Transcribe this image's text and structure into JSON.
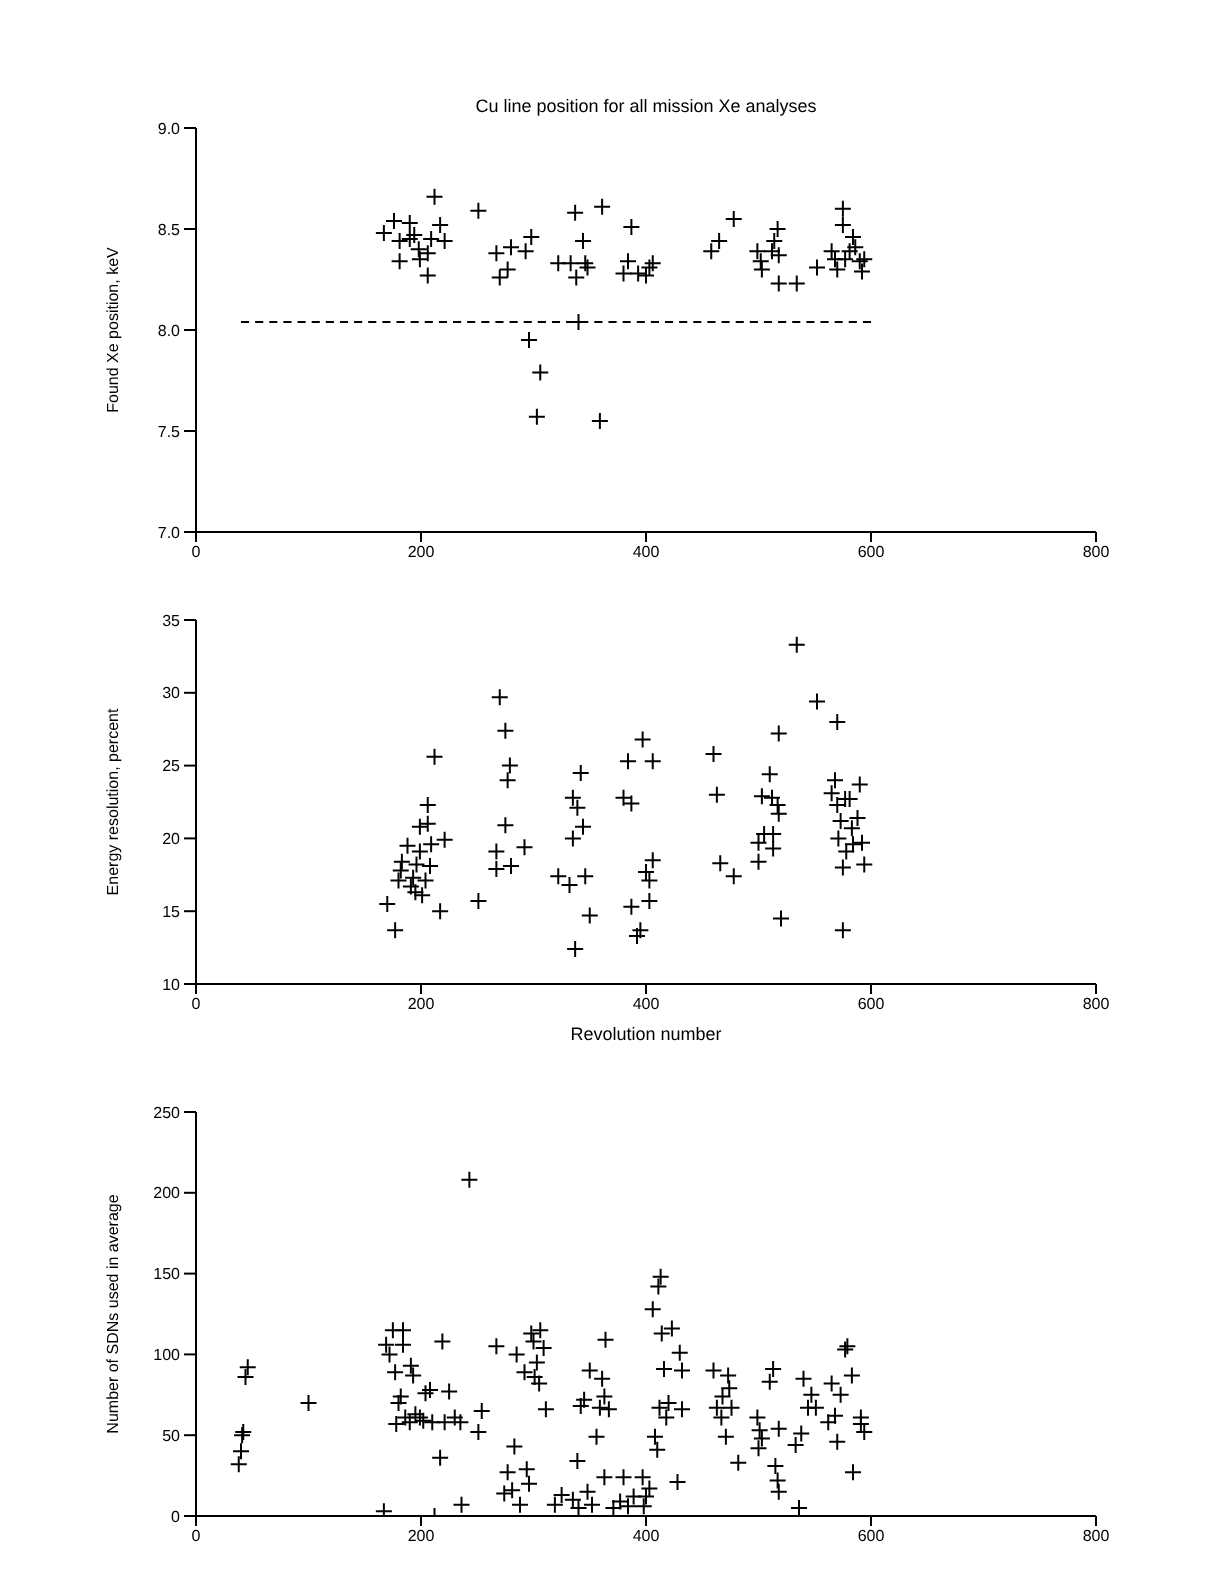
{
  "chart_data": [
    {
      "type": "scatter",
      "title": "Cu line position for all mission Xe analyses",
      "ylabel": "Found Xe position, keV",
      "xlim": [
        0,
        800
      ],
      "xticks": [
        0,
        200,
        400,
        600,
        800
      ],
      "ylim": [
        7.0,
        9.0
      ],
      "yticks": [
        {
          "value": 7.0,
          "label": "7.0"
        },
        {
          "value": 7.5,
          "label": "7.5"
        },
        {
          "value": 8.0,
          "label": "8.0"
        },
        {
          "value": 8.5,
          "label": "8.5"
        },
        {
          "value": 9.0,
          "label": "9.0"
        }
      ],
      "marker": "cross",
      "grid": false,
      "legend": false,
      "series": [
        {
          "type": "scatter",
          "color": "#000000",
          "x": [
            167,
            176,
            181,
            190,
            194,
            190,
            181,
            198,
            199,
            206,
            212,
            217,
            221,
            206,
            209,
            251,
            267,
            270,
            277,
            280,
            293,
            298,
            296,
            306,
            303,
            322,
            333,
            337,
            338,
            344,
            346,
            348,
            340,
            361,
            359,
            387,
            384,
            380,
            393,
            400,
            403,
            406,
            458,
            465,
            478,
            499,
            502,
            503,
            512,
            514,
            517,
            518,
            518,
            534,
            552,
            565,
            568,
            570,
            575,
            575,
            577,
            581,
            584,
            586,
            590,
            592,
            594
          ],
          "values": [
            8.48,
            8.54,
            8.44,
            8.53,
            8.47,
            8.45,
            8.34,
            8.4,
            8.35,
            8.38,
            8.66,
            8.52,
            8.44,
            8.27,
            8.45,
            8.59,
            8.38,
            8.26,
            8.3,
            8.41,
            8.39,
            8.46,
            7.95,
            7.79,
            7.57,
            8.33,
            8.33,
            8.58,
            8.26,
            8.44,
            8.33,
            8.31,
            8.04,
            8.61,
            7.55,
            8.51,
            8.34,
            8.28,
            8.28,
            8.27,
            8.31,
            8.33,
            8.39,
            8.44,
            8.55,
            8.39,
            8.34,
            8.3,
            8.39,
            8.44,
            8.5,
            8.37,
            8.23,
            8.23,
            8.31,
            8.39,
            8.35,
            8.3,
            8.6,
            8.52,
            8.35,
            8.39,
            8.46,
            8.41,
            8.34,
            8.29,
            8.35
          ]
        },
        {
          "type": "line",
          "color": "#000000",
          "line_style": "dashed",
          "marker": "none",
          "x": [
            40,
            600
          ],
          "values": [
            8.04,
            8.04
          ]
        }
      ]
    },
    {
      "type": "scatter",
      "xlabel": "Revolution number",
      "ylabel": "Energy resolution, percent",
      "xlim": [
        0,
        800
      ],
      "xticks": [
        0,
        200,
        400,
        600,
        800
      ],
      "ylim": [
        10,
        35
      ],
      "yticks": [
        10,
        15,
        20,
        25,
        30,
        35
      ],
      "marker": "cross",
      "grid": false,
      "legend": false,
      "series": [
        {
          "type": "scatter",
          "color": "#000000",
          "x": [
            170,
            177,
            180,
            183,
            182,
            188,
            191,
            193,
            195,
            196,
            199,
            199,
            201,
            204,
            206,
            206,
            208,
            209,
            212,
            217,
            221,
            251,
            267,
            267,
            270,
            275,
            275,
            277,
            279,
            280,
            292,
            322,
            332,
            335,
            335,
            339,
            342,
            344,
            337,
            346,
            350,
            380,
            384,
            387,
            387,
            392,
            395,
            397,
            400,
            403,
            403,
            406,
            406,
            460,
            463,
            466,
            478,
            500,
            500,
            503,
            505,
            510,
            512,
            513,
            513,
            517,
            518,
            518,
            520,
            534,
            552,
            565,
            568,
            570,
            570,
            571,
            573,
            575,
            575,
            577,
            578,
            581,
            583,
            584,
            588,
            590,
            592,
            594
          ],
          "values": [
            15.5,
            13.7,
            17.1,
            18.4,
            17.8,
            19.5,
            16.7,
            17.3,
            16.3,
            18.2,
            19.1,
            20.8,
            16.1,
            17.1,
            22.3,
            21.0,
            18.1,
            19.6,
            25.6,
            15.0,
            19.9,
            15.7,
            19.1,
            17.9,
            29.7,
            27.4,
            20.9,
            24.0,
            25.0,
            18.1,
            19.4,
            17.4,
            16.8,
            22.8,
            20.0,
            22.1,
            24.5,
            20.8,
            12.4,
            17.4,
            14.7,
            22.8,
            25.3,
            22.4,
            15.3,
            13.3,
            13.7,
            26.8,
            17.7,
            17.1,
            15.7,
            25.3,
            18.5,
            25.8,
            23.0,
            18.3,
            17.4,
            18.4,
            19.7,
            22.9,
            20.3,
            24.4,
            22.8,
            20.3,
            19.3,
            22.3,
            21.7,
            27.2,
            14.5,
            33.3,
            29.4,
            23.1,
            24.0,
            22.3,
            28.0,
            20.0,
            21.2,
            18.0,
            13.7,
            22.7,
            19.1,
            22.7,
            20.7,
            19.6,
            21.4,
            23.7,
            19.7,
            18.2
          ]
        }
      ]
    },
    {
      "type": "scatter",
      "ylabel": "Number of SDNs used in average",
      "xlim": [
        0,
        800
      ],
      "xticks": [
        0,
        200,
        400,
        600,
        800
      ],
      "ylim": [
        0,
        250
      ],
      "yticks": [
        0,
        50,
        100,
        150,
        200,
        250
      ],
      "marker": "cross",
      "grid": false,
      "legend": false,
      "series": [
        {
          "type": "scatter",
          "color": "#000000",
          "x": [
            38,
            40,
            41,
            42,
            44,
            46,
            100,
            167,
            169,
            172,
            175,
            177,
            178,
            180,
            182,
            184,
            184,
            186,
            190,
            191,
            193,
            195,
            199,
            202,
            204,
            208,
            210,
            212,
            217,
            219,
            221,
            225,
            230,
            235,
            236,
            243,
            251,
            254,
            267,
            274,
            277,
            281,
            283,
            285,
            288,
            292,
            294,
            296,
            298,
            300,
            301,
            303,
            305,
            306,
            309,
            311,
            319,
            325,
            335,
            339,
            340,
            342,
            345,
            348,
            350,
            352,
            356,
            359,
            361,
            363,
            363,
            364,
            367,
            371,
            377,
            380,
            384,
            389,
            397,
            398,
            400,
            403,
            406,
            408,
            410,
            411,
            412,
            413,
            414,
            416,
            418,
            420,
            423,
            428,
            430,
            432,
            432,
            460,
            463,
            467,
            468,
            471,
            473,
            474,
            476,
            482,
            499,
            500,
            501,
            503,
            510,
            513,
            515,
            517,
            518,
            518,
            533,
            536,
            538,
            540,
            544,
            547,
            551,
            562,
            565,
            568,
            570,
            573,
            577,
            579,
            583,
            584,
            591,
            594,
            591
          ],
          "values": [
            32,
            40,
            50,
            52,
            86,
            92,
            70,
            3,
            106,
            100,
            115,
            89,
            57,
            70,
            74,
            115,
            106,
            61,
            58,
            93,
            87,
            63,
            61,
            59,
            76,
            78,
            58,
            0,
            36,
            108,
            58,
            77,
            61,
            58,
            7,
            208,
            52,
            65,
            105,
            14,
            27,
            16,
            43,
            100,
            7,
            89,
            29,
            20,
            113,
            108,
            86,
            95,
            82,
            115,
            104,
            66,
            7,
            13,
            10,
            34,
            5,
            68,
            72,
            15,
            90,
            7,
            49,
            67,
            85,
            24,
            74,
            109,
            66,
            5,
            9,
            24,
            6,
            12,
            24,
            6,
            12,
            17,
            128,
            49,
            41,
            142,
            67,
            148,
            113,
            91,
            61,
            70,
            116,
            21,
            101,
            90,
            66,
            90,
            67,
            61,
            74,
            49,
            87,
            79,
            67,
            33,
            61,
            42,
            53,
            48,
            83,
            91,
            31,
            22,
            15,
            54,
            44,
            5,
            51,
            85,
            67,
            75,
            67,
            58,
            82,
            62,
            46,
            75,
            103,
            105,
            87,
            27,
            57,
            52,
            61
          ]
        }
      ]
    }
  ]
}
